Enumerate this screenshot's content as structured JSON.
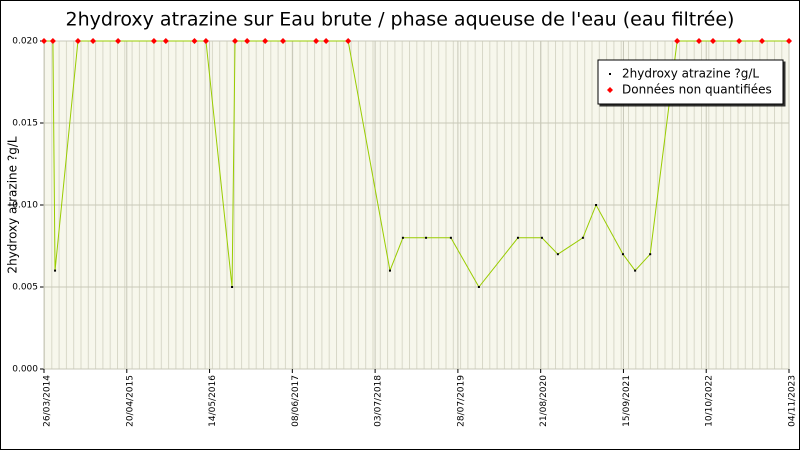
{
  "chart_data": {
    "type": "line",
    "title": "2hydroxy atrazine sur Eau brute / phase aqueuse de l'eau (eau filtrée)",
    "y_label": "2hydroxy atrazine ?g/L",
    "xlim": [
      "2014-03-26",
      "2023-11-04"
    ],
    "xticks": [
      {
        "value": "2014-03-26",
        "label": "26/03/2014"
      },
      {
        "value": "2015-04-20",
        "label": "20/04/2015"
      },
      {
        "value": "2016-05-14",
        "label": "14/05/2016"
      },
      {
        "value": "2017-06-08",
        "label": "08/06/2017"
      },
      {
        "value": "2018-07-03",
        "label": "03/07/2018"
      },
      {
        "value": "2019-07-28",
        "label": "28/07/2019"
      },
      {
        "value": "2020-08-21",
        "label": "21/08/2020"
      },
      {
        "value": "2021-09-15",
        "label": "15/09/2021"
      },
      {
        "value": "2022-10-10",
        "label": "10/10/2022"
      },
      {
        "value": "2023-11-04",
        "label": "04/11/2023"
      }
    ],
    "ylim": [
      0,
      0.02
    ],
    "yticks": [
      {
        "value": 0,
        "label": "0.000"
      },
      {
        "value": 0.005,
        "label": "0.005"
      },
      {
        "value": 0.01,
        "label": "0.010"
      },
      {
        "value": 0.015,
        "label": "0.015"
      },
      {
        "value": 0.02,
        "label": "0.020"
      }
    ],
    "grid": true,
    "legend_position": "upper right",
    "series": [
      {
        "name": "2hydroxy atrazine ?g/L",
        "color": "#000000",
        "line_color": "#99cc00",
        "x": [
          "2014-03-26",
          "2014-05-07",
          "2014-05-17",
          "2014-09-02",
          "2014-11-12",
          "2015-03-10",
          "2015-08-26",
          "2015-10-21",
          "2016-03-04",
          "2016-04-27",
          "2016-08-28",
          "2016-09-11",
          "2016-11-07",
          "2017-01-31",
          "2017-04-25",
          "2017-09-28",
          "2017-11-14",
          "2018-02-26",
          "2018-09-11",
          "2018-11-11",
          "2019-02-28",
          "2019-06-25",
          "2019-11-04",
          "2020-05-06",
          "2020-08-27",
          "2020-11-10",
          "2021-03-08",
          "2021-05-09",
          "2021-09-13",
          "2021-11-09",
          "2022-01-19",
          "2022-05-26",
          "2022-09-06",
          "2022-11-11",
          "2023-03-14",
          "2023-06-30",
          "2023-11-04"
        ],
        "values": [
          0.02,
          0.02,
          0.006,
          0.02,
          0.02,
          0.02,
          0.02,
          0.02,
          0.02,
          0.02,
          0.005,
          0.02,
          0.02,
          0.02,
          0.02,
          0.02,
          0.02,
          0.02,
          0.006,
          0.008,
          0.008,
          0.008,
          0.005,
          0.008,
          0.008,
          0.007,
          0.008,
          0.01,
          0.007,
          0.006,
          0.007,
          0.02,
          0.02,
          0.02,
          0.02,
          0.02,
          0.02
        ]
      },
      {
        "name": "Données non quantifiées",
        "color": "#ff0000",
        "x": [
          "2014-03-26",
          "2014-05-07",
          "2014-09-02",
          "2014-11-12",
          "2015-03-10",
          "2015-08-26",
          "2015-10-21",
          "2016-03-04",
          "2016-04-27",
          "2016-09-11",
          "2016-11-07",
          "2017-01-31",
          "2017-04-25",
          "2017-09-28",
          "2017-11-14",
          "2018-02-26",
          "2022-05-26",
          "2022-09-06",
          "2022-11-11",
          "2023-03-14",
          "2023-06-30",
          "2023-11-04"
        ],
        "values": [
          0.02,
          0.02,
          0.02,
          0.02,
          0.02,
          0.02,
          0.02,
          0.02,
          0.02,
          0.02,
          0.02,
          0.02,
          0.02,
          0.02,
          0.02,
          0.02,
          0.02,
          0.02,
          0.02,
          0.02,
          0.02,
          0.02
        ]
      }
    ]
  }
}
